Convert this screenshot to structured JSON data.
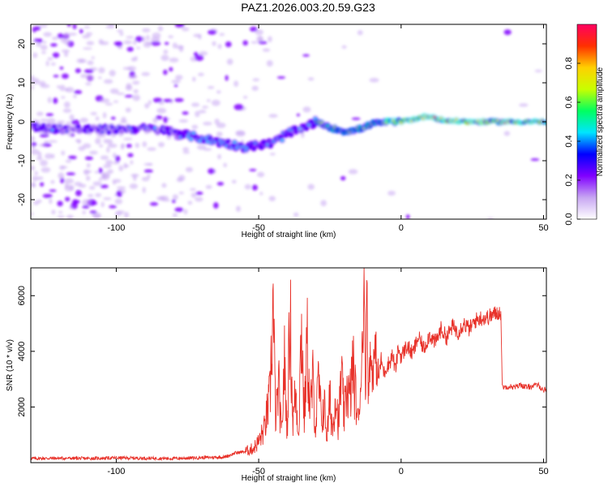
{
  "title": "PAZ1.2026.003.20.59.G23",
  "chart_data": [
    {
      "type": "heatmap",
      "xlabel": "Height of straight line (km)",
      "ylabel": "Frequency (Hz)",
      "xlim": [
        -130,
        51
      ],
      "ylim": [
        -25,
        25
      ],
      "x_ticks": [
        -100,
        -50,
        0,
        50
      ],
      "y_ticks": [
        -20,
        -10,
        0,
        10,
        20
      ],
      "x_tick_labels": [
        "-100",
        "-50",
        "0",
        "50"
      ],
      "y_tick_labels": [
        "-20",
        "-10",
        "0",
        "10",
        "20"
      ],
      "ridge": [
        {
          "x": -130,
          "y": -1.5
        },
        {
          "x": -110,
          "y": -2
        },
        {
          "x": -90,
          "y": -1.8
        },
        {
          "x": -80,
          "y": -2.5
        },
        {
          "x": -75,
          "y": -3.5
        },
        {
          "x": -65,
          "y": -5
        },
        {
          "x": -55,
          "y": -6.5
        },
        {
          "x": -45,
          "y": -5.5
        },
        {
          "x": -40,
          "y": -3
        },
        {
          "x": -35,
          "y": -2
        },
        {
          "x": -30,
          "y": 0
        },
        {
          "x": -25,
          "y": -1.5
        },
        {
          "x": -20,
          "y": -2.5
        },
        {
          "x": -15,
          "y": -2
        },
        {
          "x": -10,
          "y": -0.5
        },
        {
          "x": -5,
          "y": 0
        },
        {
          "x": 0,
          "y": 0
        },
        {
          "x": 10,
          "y": 1.5
        },
        {
          "x": 15,
          "y": 0.3
        },
        {
          "x": 25,
          "y": 0
        },
        {
          "x": 51,
          "y": 0
        }
      ],
      "colorbar": {
        "label": "Normalized spectral amplitude",
        "range": [
          0,
          1
        ],
        "ticks": [
          0.0,
          0.2,
          0.4,
          0.6,
          0.8
        ],
        "tick_labels": [
          "0.0",
          "0.2",
          "0.4",
          "0.6",
          "0.8"
        ],
        "colors": [
          "#ffffff",
          "#c7a6f2",
          "#8000ff",
          "#0000ff",
          "#00e5ff",
          "#00ff60",
          "#c8ff00",
          "#ffd000",
          "#ff3000",
          "#ff0060"
        ]
      },
      "grid": false
    },
    {
      "type": "line",
      "xlabel": "Height of straight line (km)",
      "ylabel": "SNR (10 * v/v)",
      "xlim": [
        -130,
        51
      ],
      "ylim": [
        0,
        7000
      ],
      "x_ticks": [
        -100,
        -50,
        0,
        50
      ],
      "y_ticks": [
        2000,
        4000,
        6000
      ],
      "x_tick_labels": [
        "-100",
        "-50",
        "0",
        "50"
      ],
      "y_tick_labels": [
        "2000",
        "4000",
        "6000"
      ],
      "color": "#e8322a",
      "series": [
        {
          "x": [
            -130,
            -120,
            -110,
            -100,
            -90,
            -80,
            -70,
            -62,
            -58,
            -55,
            -52,
            -50,
            -48,
            -46,
            -45,
            -44,
            -43,
            -42,
            -41,
            -40,
            -39,
            -38,
            -37,
            -36,
            -35,
            -34,
            -33,
            -32,
            -31,
            -30,
            -29,
            -28,
            -27,
            -26,
            -25,
            -24,
            -23,
            -22,
            -21,
            -20,
            -19,
            -18,
            -17,
            -16,
            -15,
            -14,
            -13,
            -12.5,
            -12,
            -11.5,
            -11,
            -10,
            -9,
            -8,
            -7,
            -6,
            -5,
            -4,
            -3,
            -2,
            -1,
            0,
            2,
            4,
            6,
            8,
            10,
            12,
            14,
            16,
            18,
            20,
            22,
            24,
            26,
            28,
            30,
            32,
            34,
            35,
            35.5,
            36,
            38,
            40,
            42,
            44,
            46,
            48,
            50,
            51
          ],
          "y": [
            150,
            160,
            150,
            170,
            160,
            150,
            180,
            200,
            350,
            400,
            500,
            750,
            1200,
            2400,
            5700,
            1500,
            2800,
            900,
            3600,
            1200,
            5500,
            1400,
            2600,
            1000,
            5100,
            1500,
            4400,
            1800,
            2900,
            1200,
            3000,
            1500,
            2100,
            900,
            2300,
            1100,
            2700,
            1300,
            3200,
            1600,
            2800,
            2200,
            3500,
            2400,
            1400,
            3200,
            6400,
            2300,
            7000,
            2200,
            3800,
            3300,
            4000,
            3000,
            3700,
            3200,
            3500,
            3600,
            3900,
            3300,
            4100,
            3800,
            4200,
            3900,
            4500,
            4100,
            4600,
            4300,
            4800,
            4500,
            4900,
            4700,
            5000,
            4800,
            5100,
            5200,
            5200,
            5300,
            5400,
            5400,
            2800,
            2700,
            2750,
            2700,
            2800,
            2700,
            2750,
            2800,
            2600,
            2650
          ]
        }
      ],
      "grid": false
    }
  ]
}
